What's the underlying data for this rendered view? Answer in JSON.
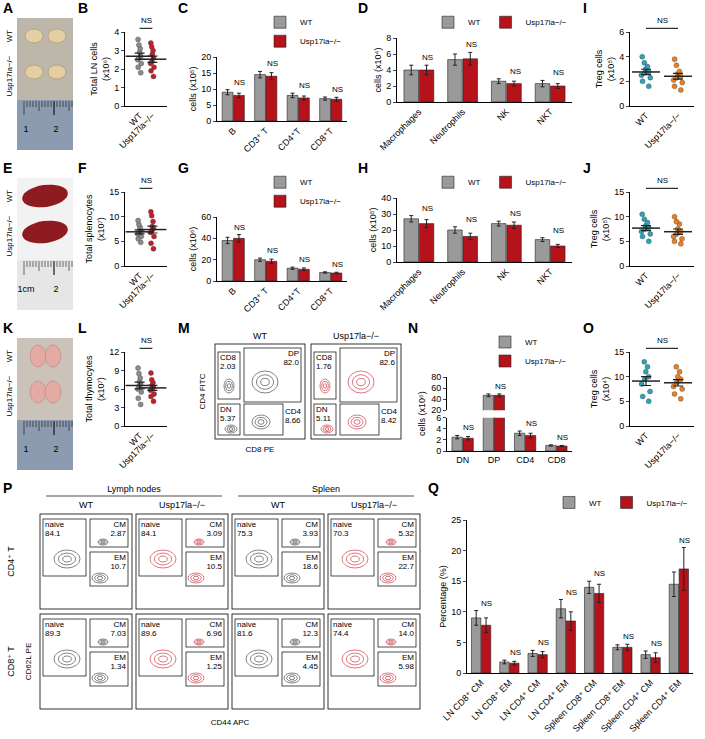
{
  "chart_data": [
    {
      "panel": "B",
      "type": "dot",
      "y_label": "Total LN cells (x10⁶)",
      "ylim": [
        0,
        4
      ],
      "yticks": [
        0,
        1,
        2,
        3,
        4
      ],
      "significance": "NS",
      "series": [
        {
          "name": "WT",
          "color": "#8c8c8c",
          "values": [
            1.8,
            2.1,
            2.3,
            2.5,
            2.6,
            2.7,
            2.9,
            3.1,
            3.3,
            3.6
          ],
          "mean": 2.69,
          "sem": 0.17
        },
        {
          "name": "Usp17la−/−",
          "color": "#c41e2a",
          "values": [
            1.6,
            1.9,
            2.1,
            2.3,
            2.4,
            2.6,
            2.8,
            3.0,
            3.2,
            3.4
          ],
          "mean": 2.53,
          "sem": 0.17
        }
      ]
    },
    {
      "panel": "C",
      "type": "bar",
      "y_label": "cells (x10⁵)",
      "categories": [
        "B",
        "CD3⁺ T",
        "CD4⁺T",
        "CD8⁺T"
      ],
      "ylim": [
        0,
        20
      ],
      "yticks": [
        0,
        5,
        10,
        15,
        20
      ],
      "legend": "top",
      "significance": [
        "NS",
        "NS",
        "NS",
        "NS"
      ],
      "series": [
        {
          "name": "WT",
          "color": "#9a9a9a",
          "values": [
            9,
            14.5,
            8,
            7
          ],
          "errors": [
            0.8,
            1,
            0.7,
            0.5
          ]
        },
        {
          "name": "Usp17la−/−",
          "color": "#b5121b",
          "values": [
            8,
            14,
            7.2,
            6.8
          ],
          "errors": [
            0.7,
            1.1,
            0.6,
            0.6
          ]
        }
      ]
    },
    {
      "panel": "D",
      "type": "bar",
      "y_label": "cells (x10⁴)",
      "categories": [
        "Macrophages",
        "Neutrophils",
        "NK",
        "NKT"
      ],
      "ylim": [
        0,
        8
      ],
      "yticks": [
        0,
        2,
        4,
        6,
        8
      ],
      "legend": "top",
      "significance": [
        "NS",
        "NS",
        "NS",
        "NS"
      ],
      "series": [
        {
          "name": "WT",
          "color": "#9a9a9a",
          "values": [
            4,
            5.3,
            2.6,
            2.3
          ],
          "errors": [
            0.6,
            0.7,
            0.3,
            0.4
          ]
        },
        {
          "name": "Usp17la−/−",
          "color": "#b5121b",
          "values": [
            4,
            5.4,
            2.3,
            2.0
          ],
          "errors": [
            0.6,
            0.8,
            0.3,
            0.3
          ]
        }
      ]
    },
    {
      "panel": "I",
      "type": "dot",
      "y_label": "Treg cells (x10⁵)",
      "ylim": [
        0,
        6
      ],
      "yticks": [
        0,
        2,
        4,
        6
      ],
      "significance": "NS",
      "series": [
        {
          "name": "WT",
          "color": "#2aa5b8",
          "values": [
            1.6,
            2.0,
            2.3,
            2.5,
            2.7,
            2.8,
            3.0,
            3.2,
            3.5,
            4.0
          ],
          "mean": 2.76,
          "sem": 0.22
        },
        {
          "name": "Usp17la−/−",
          "color": "#f07f1b",
          "values": [
            1.3,
            1.6,
            1.9,
            2.1,
            2.3,
            2.4,
            2.6,
            2.8,
            3.3,
            3.8
          ],
          "mean": 2.41,
          "sem": 0.23
        }
      ]
    },
    {
      "panel": "F",
      "type": "dot",
      "y_label": "Total splenocytes (x10⁷)",
      "ylim": [
        0,
        15
      ],
      "yticks": [
        0,
        5,
        10,
        15
      ],
      "significance": "NS",
      "series": [
        {
          "name": "WT",
          "color": "#8c8c8c",
          "values": [
            4.8,
            5.5,
            6,
            6.5,
            6.8,
            7,
            7.3,
            7.8,
            8.4,
            9.2
          ],
          "mean": 6.93,
          "sem": 0.4
        },
        {
          "name": "Usp17la−/−",
          "color": "#c41e2a",
          "values": [
            3.5,
            4.6,
            6,
            6.8,
            7.2,
            7.6,
            8,
            9,
            10.2,
            11
          ],
          "mean": 7.39,
          "sem": 0.7
        }
      ]
    },
    {
      "panel": "G",
      "type": "bar",
      "y_label": "cells (x10⁶)",
      "categories": [
        "B",
        "CD3⁺ T",
        "CD4⁺T",
        "CD8⁺T"
      ],
      "ylim": [
        0,
        60
      ],
      "yticks": [
        0,
        20,
        40,
        60
      ],
      "legend": "top",
      "significance": [
        "NS",
        "NS",
        "NS",
        "NS"
      ],
      "series": [
        {
          "name": "WT",
          "color": "#9a9a9a",
          "values": [
            38,
            20,
            12,
            8
          ],
          "errors": [
            3,
            1.5,
            1,
            0.6
          ]
        },
        {
          "name": "Usp17la−/−",
          "color": "#b5121b",
          "values": [
            40,
            18.5,
            11,
            7.5
          ],
          "errors": [
            3.5,
            2,
            1.2,
            0.7
          ]
        }
      ]
    },
    {
      "panel": "H",
      "type": "bar",
      "y_label": "cells (x10⁵)",
      "categories": [
        "Macrophages",
        "Neutrophils",
        "NK",
        "NKT"
      ],
      "ylim": [
        0,
        40
      ],
      "yticks": [
        0,
        10,
        20,
        30,
        40
      ],
      "legend": "top",
      "significance": [
        "NS",
        "NS",
        "NS",
        "NS"
      ],
      "series": [
        {
          "name": "WT",
          "color": "#9a9a9a",
          "values": [
            27,
            20,
            24,
            14
          ],
          "errors": [
            2,
            2,
            1.5,
            1.2
          ]
        },
        {
          "name": "Usp17la−/−",
          "color": "#b5121b",
          "values": [
            24,
            16,
            23,
            10
          ],
          "errors": [
            2.5,
            2,
            2,
            1
          ]
        }
      ]
    },
    {
      "panel": "J",
      "type": "dot",
      "y_label": "Treg cells (x10⁵)",
      "ylim": [
        0,
        15
      ],
      "yticks": [
        0,
        5,
        10,
        15
      ],
      "significance": "NS",
      "series": [
        {
          "name": "WT",
          "color": "#2aa5b8",
          "values": [
            5,
            6,
            6.5,
            7,
            7.5,
            7.8,
            8.2,
            8.8,
            9.5,
            10.5
          ],
          "mean": 7.68,
          "sem": 0.5
        },
        {
          "name": "Usp17la−/−",
          "color": "#f07f1b",
          "values": [
            4.5,
            5,
            5.5,
            6,
            6.5,
            7,
            7.5,
            8.5,
            9,
            10
          ],
          "mean": 6.95,
          "sem": 0.55
        }
      ]
    },
    {
      "panel": "L",
      "type": "dot",
      "y_label": "Total thymocytes (x10⁷)",
      "ylim": [
        0,
        12
      ],
      "yticks": [
        0,
        3,
        6,
        9,
        12
      ],
      "significance": "NS",
      "series": [
        {
          "name": "WT",
          "color": "#8c8c8c",
          "values": [
            3.5,
            4.5,
            5.5,
            6,
            6.5,
            6.8,
            7.2,
            7.8,
            8.5,
            9.4
          ],
          "mean": 6.57,
          "sem": 0.55
        },
        {
          "name": "Usp17la−/−",
          "color": "#c41e2a",
          "values": [
            4,
            4.8,
            5.2,
            5.8,
            6,
            6.3,
            6.6,
            7,
            7.5,
            8.6
          ],
          "mean": 6.18,
          "sem": 0.4
        }
      ]
    },
    {
      "panel": "N",
      "type": "bar",
      "y_label": "cells (x10⁶)",
      "categories": [
        "DN",
        "DP",
        "CD4",
        "CD8"
      ],
      "ylim": [
        0,
        80
      ],
      "axis_break": [
        6,
        20
      ],
      "yticks": [
        0,
        2,
        4,
        6,
        20,
        40,
        60,
        80
      ],
      "legend": "top",
      "significance": [
        "NS",
        "NS",
        "NS",
        "NS"
      ],
      "series": [
        {
          "name": "WT",
          "color": "#9a9a9a",
          "values": [
            2.5,
            47,
            3.2,
            1.0
          ],
          "errors": [
            0.3,
            2.5,
            0.4,
            0.1
          ]
        },
        {
          "name": "Usp17la−/−",
          "color": "#b5121b",
          "values": [
            2.3,
            47,
            2.8,
            0.9
          ],
          "errors": [
            0.3,
            2.5,
            0.4,
            0.1
          ]
        }
      ]
    },
    {
      "panel": "O",
      "type": "dot",
      "y_label": "Treg cells (x10⁴)",
      "ylim": [
        0,
        15
      ],
      "yticks": [
        0,
        5,
        10,
        15
      ],
      "significance": "NS",
      "series": [
        {
          "name": "WT",
          "color": "#2aa5b8",
          "values": [
            5,
            6,
            7,
            8.5,
            9.5,
            10,
            11,
            12,
            13
          ],
          "mean": 9.11,
          "sem": 0.9
        },
        {
          "name": "Usp17la−/−",
          "color": "#f07f1b",
          "values": [
            5.5,
            6.5,
            7.5,
            8,
            8.8,
            9.5,
            10,
            11,
            12
          ],
          "mean": 8.76,
          "sem": 0.65
        }
      ]
    },
    {
      "panel": "Q",
      "type": "bar",
      "y_label": "Percentage (%)",
      "categories": [
        "LN CD8⁺ CM",
        "LN CD8⁺ EM",
        "LN CD4⁺ CM",
        "LN CD4⁺ EM",
        "Spleen CD8⁺ CM",
        "Spleen CD8⁺ EM",
        "Spleen CD4⁺ CM",
        "Spleen CD4⁺ EM"
      ],
      "ylim": [
        0,
        25
      ],
      "yticks": [
        0,
        5,
        10,
        15,
        20,
        25
      ],
      "legend": "top",
      "significance": [
        "NS",
        "NS",
        "NS",
        "NS",
        "NS",
        "NS",
        "NS",
        "NS"
      ],
      "series": [
        {
          "name": "WT",
          "color": "#9a9a9a",
          "values": [
            9,
            1.8,
            3.2,
            10.5,
            14,
            4.2,
            3,
            14.5
          ],
          "errors": [
            1.2,
            0.3,
            0.5,
            1.5,
            1,
            0.4,
            0.6,
            2
          ]
        },
        {
          "name": "Usp17la−/−",
          "color": "#b5121b",
          "values": [
            7.8,
            1.6,
            3,
            8.5,
            13,
            4.2,
            2.5,
            17
          ],
          "errors": [
            1.2,
            0.3,
            0.5,
            1.5,
            1.5,
            0.5,
            0.8,
            3.5
          ]
        }
      ]
    }
  ],
  "images": [
    {
      "panel": "A",
      "rows": [
        "WT",
        "Usp17la−/−"
      ],
      "scale": [
        "1",
        "2"
      ],
      "color": "#e3cfa3"
    },
    {
      "panel": "E",
      "rows": [
        "WT",
        "Usp17la−/−"
      ],
      "scale": [
        "1cm",
        "2"
      ],
      "color": "#8e1b1f"
    },
    {
      "panel": "K",
      "rows": [
        "WT",
        "Usp17la−/−"
      ],
      "scale": [
        "1",
        "2"
      ],
      "color": "#e3aba4"
    }
  ],
  "flow_plots": [
    {
      "panel": "M",
      "x_label": "CD8 PE",
      "y_label": "CD4 FITC",
      "plots": [
        {
          "title": "WT",
          "color": "#333333",
          "gates": [
            {
              "name": "CD8",
              "value": "2.03"
            },
            {
              "name": "DP",
              "value": "82.0"
            },
            {
              "name": "DN",
              "value": "5.37"
            },
            {
              "name": "CD4",
              "value": "8.66"
            }
          ]
        },
        {
          "title": "Usp17la−/−",
          "color": "#c41e2a",
          "gates": [
            {
              "name": "CD8",
              "value": "1.76"
            },
            {
              "name": "DP",
              "value": "82.6"
            },
            {
              "name": "DN",
              "value": "5.11"
            },
            {
              "name": "CD4",
              "value": "8.42"
            }
          ]
        }
      ]
    },
    {
      "panel": "P",
      "x_label": "CD44 APC",
      "y_label": "CD62L PE",
      "groups": [
        {
          "name": "Lymph nodes",
          "columns": [
            "WT",
            "Usp17la−/−"
          ]
        },
        {
          "name": "Spleen",
          "columns": [
            "WT",
            "Usp17la−/−"
          ]
        }
      ],
      "colors": [
        "#333333",
        "#c41e2a",
        "#333333",
        "#c41e2a"
      ],
      "rows": [
        {
          "label": "CD4⁺ T",
          "plots": [
            [
              {
                "name": "naive",
                "value": "84.1"
              },
              {
                "name": "CM",
                "value": "2.87"
              },
              {
                "name": "EM",
                "value": "10.7"
              }
            ],
            [
              {
                "name": "naive",
                "value": "84.1"
              },
              {
                "name": "CM",
                "value": "3.09"
              },
              {
                "name": "EM",
                "value": "10.5"
              }
            ],
            [
              {
                "name": "naive",
                "value": "75.3"
              },
              {
                "name": "CM",
                "value": "3.93"
              },
              {
                "name": "EM",
                "value": "18.6"
              }
            ],
            [
              {
                "name": "naive",
                "value": "70.3"
              },
              {
                "name": "CM",
                "value": "5.32"
              },
              {
                "name": "EM",
                "value": "22.7"
              }
            ]
          ]
        },
        {
          "label": "CD8⁺ T",
          "plots": [
            [
              {
                "name": "naive",
                "value": "89.3"
              },
              {
                "name": "CM",
                "value": "7.03"
              },
              {
                "name": "EM",
                "value": "1.34"
              }
            ],
            [
              {
                "name": "naive",
                "value": "89.6"
              },
              {
                "name": "CM",
                "value": "6.96"
              },
              {
                "name": "EM",
                "value": "1.25"
              }
            ],
            [
              {
                "name": "naive",
                "value": "81.6"
              },
              {
                "name": "CM",
                "value": "12.3"
              },
              {
                "name": "EM",
                "value": "4.45"
              }
            ],
            [
              {
                "name": "naive",
                "value": "74.4"
              },
              {
                "name": "CM",
                "value": "14.0"
              },
              {
                "name": "EM",
                "value": "5.98"
              }
            ]
          ]
        }
      ]
    }
  ]
}
